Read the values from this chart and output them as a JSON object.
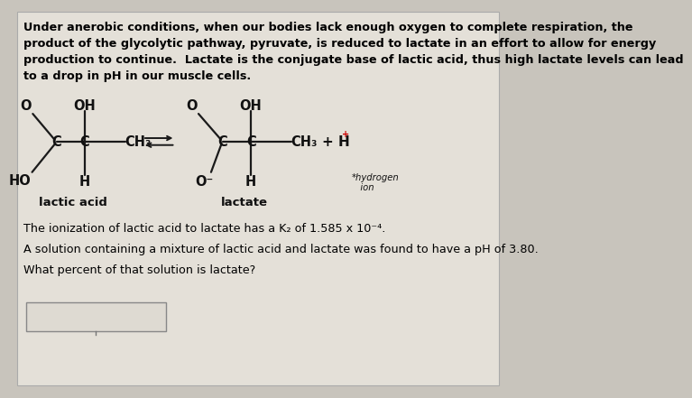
{
  "bg_color": "#c8c4bc",
  "inner_bg": "#e8e4dc",
  "text_color": "#000000",
  "intro_text": "Under anerobic conditions, when our bodies lack enough oxygen to complete respiration, the\nproduct of the glycolytic pathway, pyruvate, is reduced to lactate in an effort to allow for energy\nproduction to continue.  Lactate is the conjugate base of lactic acid, thus high lactate levels can lead\nto a drop in pH in our muscle cells.",
  "line1_text": "The ionization of lactic acid to lactate has a K₂ of 1.585 x 10⁻⁴.",
  "line2_text": "A solution containing a mixture of lactic acid and lactate was found to have a pH of 3.80.",
  "line3_text": "What percent of that solution is lactate?",
  "label_lactic": "lactic acid",
  "label_lactate": "lactate",
  "font_size_intro": 9.2,
  "font_size_chem": 10.5,
  "font_size_label": 9.5,
  "font_size_body": 9.2
}
